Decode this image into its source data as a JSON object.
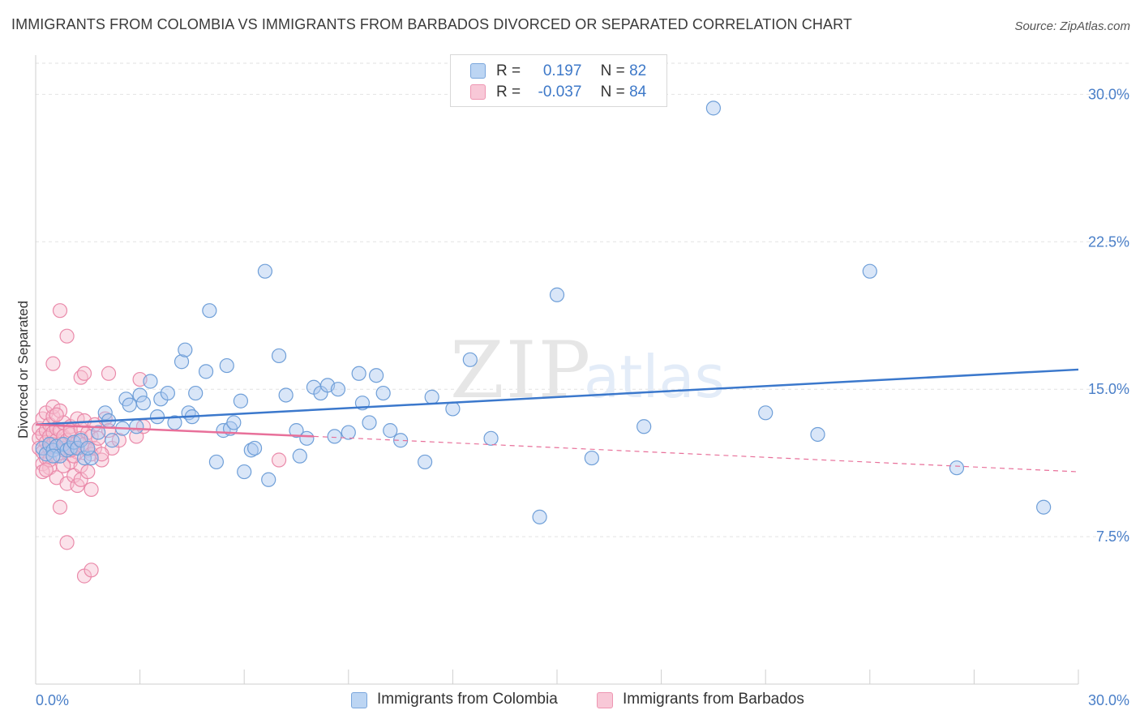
{
  "title": "IMMIGRANTS FROM COLOMBIA VS IMMIGRANTS FROM BARBADOS DIVORCED OR SEPARATED CORRELATION CHART",
  "source": "Source: ZipAtlas.com",
  "watermark": {
    "zip": "ZIP",
    "atlas": "atlas"
  },
  "legend": {
    "colombia": {
      "r_label": "R =",
      "r_value": "0.197",
      "n_label": "N =",
      "n_value": "82"
    },
    "barbados": {
      "r_label": "R =",
      "r_value": "-0.037",
      "n_label": "N =",
      "n_value": "84"
    }
  },
  "bottom_legend": {
    "colombia": "Immigrants from Colombia",
    "barbados": "Immigrants from Barbados"
  },
  "colors": {
    "colombia_fill": "#aac8ef",
    "colombia_stroke": "#6f9fd8",
    "colombia_line": "#3b78cc",
    "barbados_fill": "#f6bfd0",
    "barbados_stroke": "#ea8aaa",
    "barbados_line": "#e8709a",
    "tick_text": "#4a7fc8",
    "grid": "#e2e2e2"
  },
  "chart_data": {
    "type": "scatter",
    "title": "IMMIGRANTS FROM COLOMBIA VS IMMIGRANTS FROM BARBADOS DIVORCED OR SEPARATED CORRELATION CHART",
    "xlabel": "",
    "ylabel": "Divorced or Separated",
    "xlim": [
      0,
      30
    ],
    "ylim": [
      0,
      31.5
    ],
    "x_ticks": [
      "0.0%",
      "30.0%"
    ],
    "y_ticks": [
      {
        "value": 7.5,
        "label": "7.5%"
      },
      {
        "value": 15.0,
        "label": "15.0%"
      },
      {
        "value": 22.5,
        "label": "22.5%"
      },
      {
        "value": 30.0,
        "label": "30.0%"
      }
    ],
    "grid": "horizontal dashed",
    "legend_position": "top-center",
    "series": [
      {
        "name": "Immigrants from Colombia",
        "R": 0.197,
        "N": 82,
        "trend": {
          "x": [
            0,
            30
          ],
          "y": [
            13.2,
            16.0
          ],
          "style": "solid"
        },
        "points": [
          [
            0.2,
            12.0
          ],
          [
            0.3,
            11.7
          ],
          [
            0.4,
            12.2
          ],
          [
            0.5,
            11.9
          ],
          [
            0.6,
            12.1
          ],
          [
            0.7,
            11.6
          ],
          [
            0.8,
            12.2
          ],
          [
            0.9,
            11.9
          ],
          [
            1.0,
            12.0
          ],
          [
            1.1,
            12.3
          ],
          [
            1.2,
            12.0
          ],
          [
            1.3,
            12.4
          ],
          [
            1.4,
            11.5
          ],
          [
            1.6,
            11.5
          ],
          [
            1.8,
            12.8
          ],
          [
            2.0,
            13.8
          ],
          [
            2.1,
            13.4
          ],
          [
            2.2,
            12.4
          ],
          [
            2.6,
            14.5
          ],
          [
            2.7,
            14.2
          ],
          [
            2.9,
            13.1
          ],
          [
            3.0,
            14.7
          ],
          [
            3.1,
            14.3
          ],
          [
            3.3,
            15.4
          ],
          [
            3.6,
            14.5
          ],
          [
            3.8,
            14.8
          ],
          [
            4.0,
            13.3
          ],
          [
            4.2,
            16.4
          ],
          [
            4.3,
            17.0
          ],
          [
            4.4,
            13.8
          ],
          [
            4.5,
            13.6
          ],
          [
            4.6,
            14.8
          ],
          [
            5.0,
            19.0
          ],
          [
            5.2,
            11.3
          ],
          [
            5.4,
            12.9
          ],
          [
            5.5,
            16.2
          ],
          [
            5.6,
            13.0
          ],
          [
            5.7,
            13.3
          ],
          [
            5.9,
            14.4
          ],
          [
            6.2,
            11.9
          ],
          [
            6.3,
            12.0
          ],
          [
            6.6,
            21.0
          ],
          [
            6.7,
            10.4
          ],
          [
            7.0,
            16.7
          ],
          [
            7.2,
            14.7
          ],
          [
            7.5,
            12.9
          ],
          [
            7.8,
            12.5
          ],
          [
            8.0,
            15.1
          ],
          [
            8.2,
            14.8
          ],
          [
            8.4,
            15.2
          ],
          [
            8.6,
            12.6
          ],
          [
            8.7,
            15.0
          ],
          [
            9.0,
            12.8
          ],
          [
            9.3,
            15.8
          ],
          [
            9.4,
            14.3
          ],
          [
            9.6,
            13.3
          ],
          [
            9.8,
            15.7
          ],
          [
            10.0,
            14.8
          ],
          [
            10.5,
            12.4
          ],
          [
            11.2,
            11.3
          ],
          [
            12.0,
            14.0
          ],
          [
            12.5,
            16.5
          ],
          [
            13.1,
            12.5
          ],
          [
            14.5,
            8.5
          ],
          [
            15.0,
            19.8
          ],
          [
            16.0,
            11.5
          ],
          [
            17.5,
            13.1
          ],
          [
            19.5,
            29.3
          ],
          [
            21.0,
            13.8
          ],
          [
            22.5,
            12.7
          ],
          [
            24.0,
            21.0
          ],
          [
            26.5,
            11.0
          ],
          [
            29.0,
            9.0
          ],
          [
            0.5,
            11.6
          ],
          [
            1.5,
            12.0
          ],
          [
            2.5,
            13.0
          ],
          [
            3.5,
            13.6
          ],
          [
            4.9,
            15.9
          ],
          [
            6.0,
            10.8
          ],
          [
            7.6,
            11.6
          ],
          [
            10.2,
            12.9
          ],
          [
            11.4,
            14.6
          ]
        ]
      },
      {
        "name": "Immigrants from Barbados",
        "R": -0.037,
        "N": 84,
        "trend": {
          "x": [
            0,
            8
          ],
          "y": [
            13.2,
            12.6
          ],
          "dashed_to": [
            30,
            10.8
          ],
          "style": "solid-then-dashed"
        },
        "points": [
          [
            0.1,
            12.5
          ],
          [
            0.1,
            13.0
          ],
          [
            0.1,
            12.0
          ],
          [
            0.2,
            13.5
          ],
          [
            0.2,
            12.7
          ],
          [
            0.2,
            11.8
          ],
          [
            0.2,
            11.2
          ],
          [
            0.3,
            12.9
          ],
          [
            0.3,
            12.3
          ],
          [
            0.3,
            13.8
          ],
          [
            0.3,
            11.5
          ],
          [
            0.4,
            12.6
          ],
          [
            0.4,
            13.2
          ],
          [
            0.4,
            12.0
          ],
          [
            0.4,
            11.0
          ],
          [
            0.5,
            12.8
          ],
          [
            0.5,
            13.6
          ],
          [
            0.5,
            12.2
          ],
          [
            0.5,
            16.3
          ],
          [
            0.5,
            14.1
          ],
          [
            0.6,
            12.4
          ],
          [
            0.6,
            13.0
          ],
          [
            0.6,
            11.6
          ],
          [
            0.6,
            10.5
          ],
          [
            0.7,
            12.9
          ],
          [
            0.7,
            12.2
          ],
          [
            0.7,
            19.0
          ],
          [
            0.7,
            13.9
          ],
          [
            0.7,
            9.0
          ],
          [
            0.8,
            12.6
          ],
          [
            0.8,
            13.3
          ],
          [
            0.8,
            11.9
          ],
          [
            0.8,
            12.0
          ],
          [
            0.9,
            12.4
          ],
          [
            0.9,
            10.2
          ],
          [
            0.9,
            7.2
          ],
          [
            0.9,
            17.7
          ],
          [
            1.0,
            13.1
          ],
          [
            1.0,
            12.7
          ],
          [
            1.0,
            11.3
          ],
          [
            1.0,
            12.9
          ],
          [
            1.1,
            12.0
          ],
          [
            1.1,
            10.6
          ],
          [
            1.2,
            13.5
          ],
          [
            1.2,
            12.3
          ],
          [
            1.2,
            11.8
          ],
          [
            1.2,
            10.1
          ],
          [
            1.3,
            15.6
          ],
          [
            1.3,
            13.0
          ],
          [
            1.3,
            12.5
          ],
          [
            1.3,
            11.1
          ],
          [
            1.3,
            10.4
          ],
          [
            1.4,
            15.8
          ],
          [
            1.4,
            12.2
          ],
          [
            1.4,
            13.4
          ],
          [
            1.4,
            5.5
          ],
          [
            1.5,
            11.9
          ],
          [
            1.5,
            12.8
          ],
          [
            1.5,
            10.8
          ],
          [
            1.6,
            12.6
          ],
          [
            1.6,
            11.7
          ],
          [
            1.6,
            9.9
          ],
          [
            1.6,
            5.8
          ],
          [
            1.7,
            13.2
          ],
          [
            1.7,
            12.0
          ],
          [
            1.8,
            12.5
          ],
          [
            1.9,
            11.4
          ],
          [
            2.0,
            13.5
          ],
          [
            2.1,
            15.8
          ],
          [
            2.1,
            12.9
          ],
          [
            2.2,
            12.0
          ],
          [
            2.4,
            12.4
          ],
          [
            2.9,
            12.6
          ],
          [
            3.0,
            15.5
          ],
          [
            3.1,
            13.1
          ],
          [
            7.0,
            11.4
          ],
          [
            0.2,
            10.8
          ],
          [
            0.4,
            11.4
          ],
          [
            0.6,
            13.7
          ],
          [
            0.8,
            11.1
          ],
          [
            1.1,
            11.6
          ],
          [
            1.9,
            11.7
          ],
          [
            0.3,
            10.9
          ],
          [
            1.0,
            11.9
          ]
        ]
      }
    ]
  }
}
